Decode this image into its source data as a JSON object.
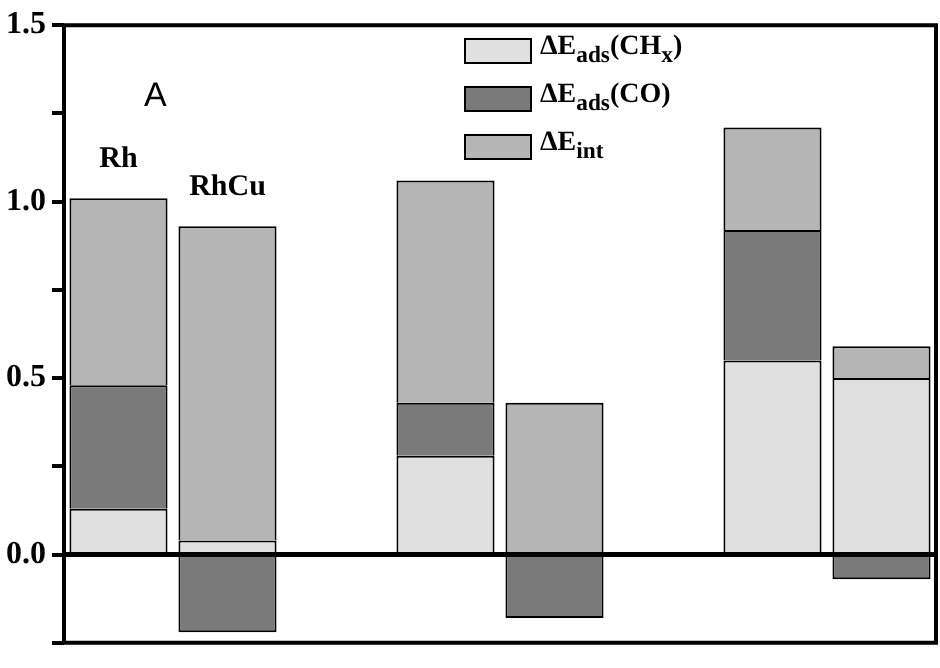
{
  "chart_data": {
    "type": "bar",
    "stacked": true,
    "categories": [
      "Rh",
      "RhCu",
      null,
      null,
      null,
      null,
      null,
      null
    ],
    "series": [
      {
        "name": "ΔE$_{ads}$(CH$_{x}$)",
        "color": "#e0e0e0",
        "values": [
          0.13,
          0.04,
          null,
          0.28,
          0,
          null,
          0.55,
          0.5
        ]
      },
      {
        "name": "ΔE$_{ads}$(CO)",
        "color": "#7a7a7a",
        "values": [
          0.35,
          -0.22,
          null,
          0.15,
          -0.18,
          null,
          0.37,
          -0.07
        ]
      },
      {
        "name": "ΔE$_{int}$",
        "color": "#b5b5b5",
        "values": [
          0.53,
          0.89,
          null,
          0.63,
          0.43,
          null,
          0.29,
          0.09
        ]
      }
    ],
    "ylim": [
      -0.25,
      1.5
    ],
    "yticks": [
      {
        "value": -0.25,
        "label": null
      },
      {
        "value": 0,
        "label": "0.0"
      },
      {
        "value": 0.25,
        "label": null
      },
      {
        "value": 0.5,
        "label": "0.5"
      },
      {
        "value": 0.75,
        "label": null
      },
      {
        "value": 1,
        "label": "1.0"
      },
      {
        "value": 1.25,
        "label": null
      },
      {
        "value": 1.5,
        "label": "1.5"
      }
    ],
    "ref_lines": [
      {
        "axis": "y",
        "value": 0,
        "color": "#000000"
      }
    ],
    "annotations": [
      "A"
    ],
    "tick_labels": "y",
    "grid": false,
    "legend": "top right"
  }
}
